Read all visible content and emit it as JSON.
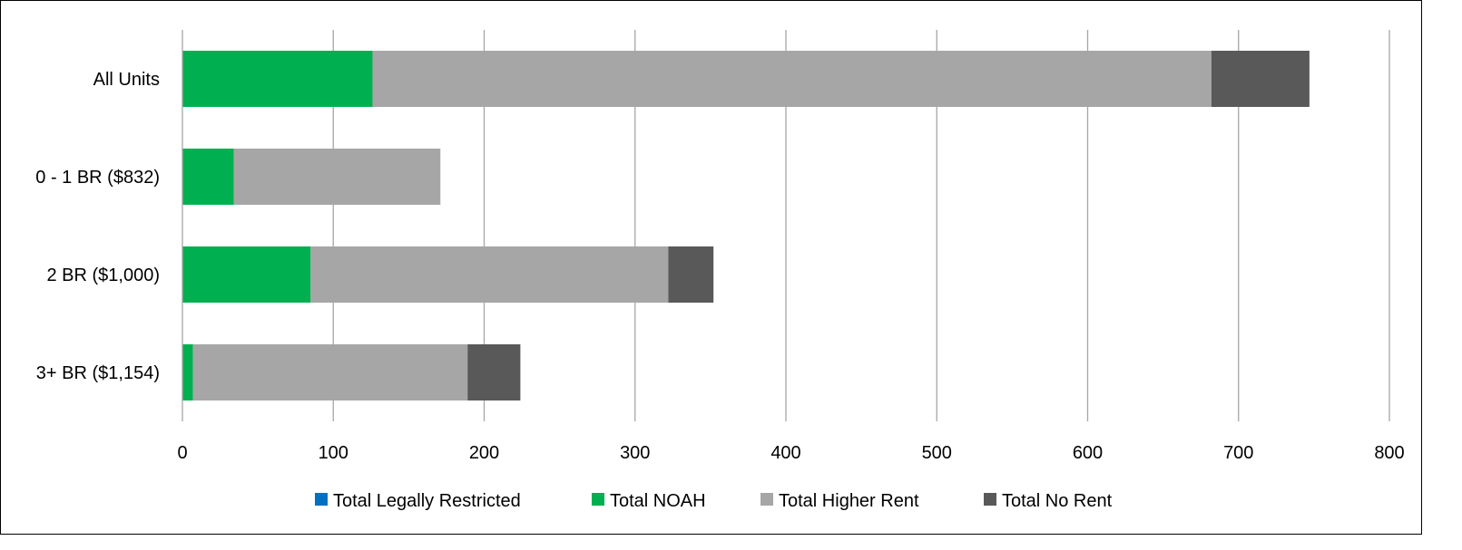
{
  "chart_data": {
    "type": "bar",
    "orientation": "horizontal",
    "stacked": true,
    "categories": [
      "All Units",
      "0 - 1 BR ($832)",
      "2 BR ($1,000)",
      "3+ BR ($1,154)"
    ],
    "series": [
      {
        "name": "Total Legally Restricted",
        "color": "#0070c0",
        "values": [
          0,
          0,
          0,
          0
        ]
      },
      {
        "name": "Total NOAH",
        "color": "#00b050",
        "values": [
          126,
          34,
          85,
          7
        ]
      },
      {
        "name": "Total Higher Rent",
        "color": "#a6a6a6",
        "values": [
          556,
          137,
          237,
          182
        ]
      },
      {
        "name": "Total No Rent",
        "color": "#595959",
        "values": [
          65,
          0,
          30,
          35
        ]
      }
    ],
    "x_ticks": [
      "0",
      "100",
      "200",
      "300",
      "400",
      "500",
      "600",
      "700",
      "800"
    ],
    "xlim": [
      0,
      800
    ],
    "grid": "vertical major gridlines",
    "legend_position": "bottom"
  }
}
